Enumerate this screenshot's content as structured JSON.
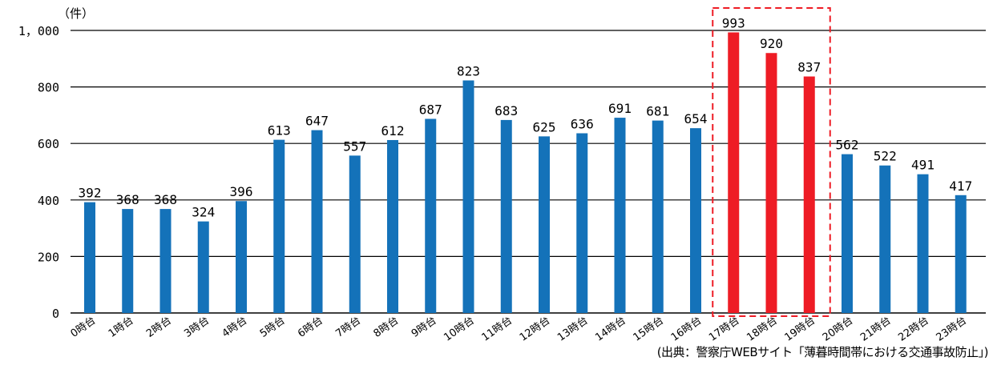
{
  "chart_data": {
    "type": "bar",
    "unit_label": "（件）",
    "categories": [
      "0時台",
      "1時台",
      "2時台",
      "3時台",
      "4時台",
      "5時台",
      "6時台",
      "7時台",
      "8時台",
      "9時台",
      "10時台",
      "11時台",
      "12時台",
      "13時台",
      "14時台",
      "15時台",
      "16時台",
      "17時台",
      "18時台",
      "19時台",
      "20時台",
      "21時台",
      "22時台",
      "23時台"
    ],
    "values": [
      392,
      368,
      368,
      324,
      396,
      613,
      647,
      557,
      612,
      687,
      823,
      683,
      625,
      636,
      691,
      681,
      654,
      993,
      920,
      837,
      562,
      522,
      491,
      417
    ],
    "highlighted_categories": [
      "17時台",
      "18時台",
      "19時台"
    ],
    "ylim": [
      0,
      1000
    ],
    "yticks": [
      0,
      200,
      400,
      600,
      800,
      1000
    ],
    "ytick_labels": [
      "0",
      "200",
      "400",
      "600",
      "800",
      "1，000"
    ],
    "grid": true,
    "colors": {
      "bar": "#1472b9",
      "highlight": "#ee1c25",
      "highlight_box": "#ee1c25",
      "grid": "#000000"
    }
  },
  "source_text": "(出典：警察庁WEBサイト「薄暮時間帯における交通事故防止」)"
}
